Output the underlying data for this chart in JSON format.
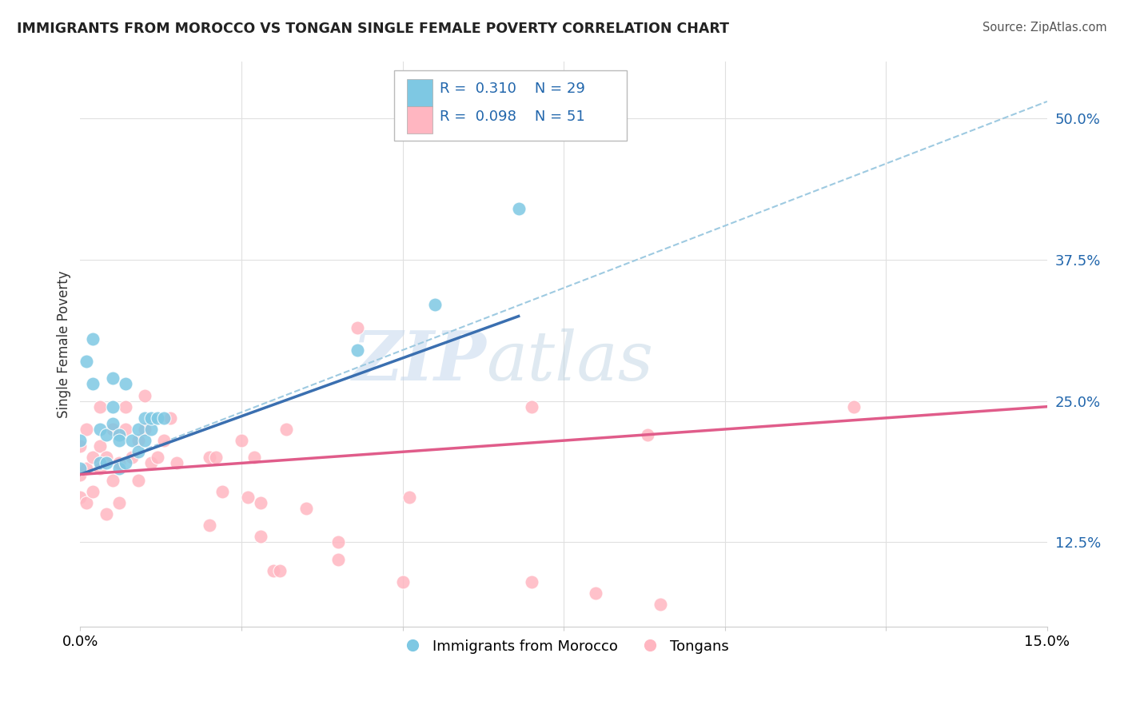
{
  "title": "IMMIGRANTS FROM MOROCCO VS TONGAN SINGLE FEMALE POVERTY CORRELATION CHART",
  "source": "Source: ZipAtlas.com",
  "ylabel": "Single Female Poverty",
  "xlim": [
    0.0,
    0.15
  ],
  "ylim": [
    0.05,
    0.55
  ],
  "ytick_positions": [
    0.125,
    0.25,
    0.375,
    0.5
  ],
  "ytick_labels": [
    "12.5%",
    "25.0%",
    "37.5%",
    "50.0%"
  ],
  "blue_color": "#7ec8e3",
  "pink_color": "#ffb6c1",
  "blue_line_color": "#3a6fb0",
  "pink_line_color": "#e05c8a",
  "dash_line_color": "#9ecae1",
  "watermark_zip": "ZIP",
  "watermark_atlas": "atlas",
  "morocco_x": [
    0.0,
    0.0,
    0.001,
    0.002,
    0.002,
    0.003,
    0.003,
    0.004,
    0.004,
    0.005,
    0.005,
    0.005,
    0.006,
    0.006,
    0.006,
    0.007,
    0.007,
    0.008,
    0.009,
    0.009,
    0.01,
    0.01,
    0.011,
    0.011,
    0.012,
    0.013,
    0.043,
    0.055,
    0.068
  ],
  "morocco_y": [
    0.19,
    0.215,
    0.285,
    0.305,
    0.265,
    0.225,
    0.195,
    0.22,
    0.195,
    0.245,
    0.23,
    0.27,
    0.19,
    0.22,
    0.215,
    0.265,
    0.195,
    0.215,
    0.205,
    0.225,
    0.215,
    0.235,
    0.225,
    0.235,
    0.235,
    0.235,
    0.295,
    0.335,
    0.42
  ],
  "tongan_x": [
    0.0,
    0.0,
    0.0,
    0.001,
    0.001,
    0.001,
    0.002,
    0.002,
    0.003,
    0.003,
    0.003,
    0.004,
    0.004,
    0.005,
    0.005,
    0.006,
    0.006,
    0.007,
    0.007,
    0.008,
    0.009,
    0.009,
    0.01,
    0.01,
    0.011,
    0.012,
    0.013,
    0.014,
    0.015,
    0.02,
    0.02,
    0.021,
    0.022,
    0.025,
    0.026,
    0.027,
    0.028,
    0.028,
    0.03,
    0.031,
    0.032,
    0.035,
    0.04,
    0.04,
    0.043,
    0.05,
    0.051,
    0.07,
    0.07,
    0.08,
    0.088,
    0.09,
    0.12
  ],
  "tongan_y": [
    0.185,
    0.21,
    0.165,
    0.19,
    0.16,
    0.225,
    0.2,
    0.17,
    0.21,
    0.19,
    0.245,
    0.2,
    0.15,
    0.225,
    0.18,
    0.195,
    0.16,
    0.225,
    0.245,
    0.2,
    0.18,
    0.215,
    0.225,
    0.255,
    0.195,
    0.2,
    0.215,
    0.235,
    0.195,
    0.2,
    0.14,
    0.2,
    0.17,
    0.215,
    0.165,
    0.2,
    0.13,
    0.16,
    0.1,
    0.1,
    0.225,
    0.155,
    0.11,
    0.125,
    0.315,
    0.09,
    0.165,
    0.09,
    0.245,
    0.08,
    0.22,
    0.07,
    0.245
  ],
  "blue_line_x0": 0.0,
  "blue_line_y0": 0.185,
  "blue_line_x1": 0.068,
  "blue_line_y1": 0.325,
  "pink_line_x0": 0.0,
  "pink_line_y0": 0.185,
  "pink_line_x1": 0.15,
  "pink_line_y1": 0.245,
  "dash_line_x0": 0.0,
  "dash_line_y0": 0.185,
  "dash_line_x1": 0.15,
  "dash_line_y1": 0.515
}
